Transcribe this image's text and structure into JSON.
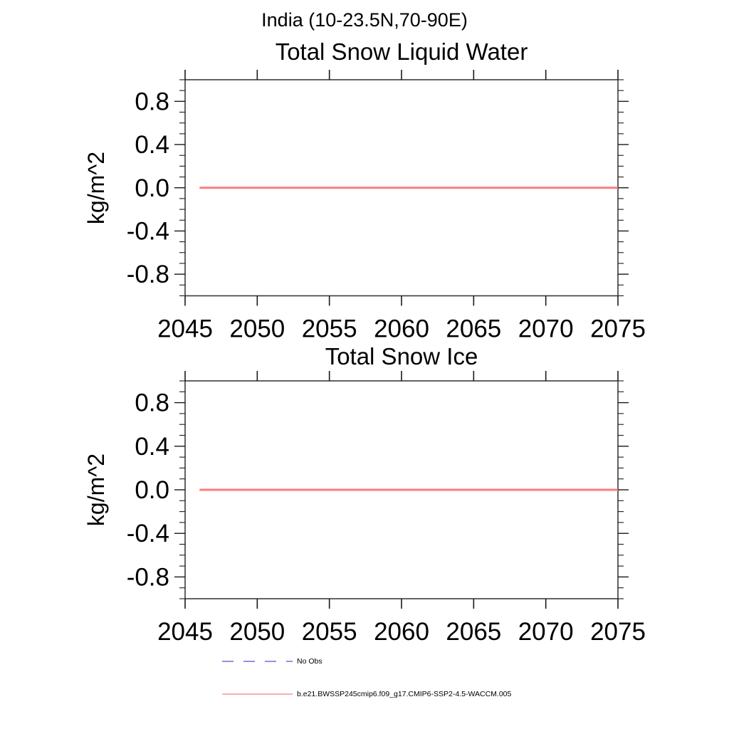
{
  "figure": {
    "suptitle": "India (10-23.5N,70-90E)",
    "background": "#ffffff",
    "axis_color": "#3c3c3c",
    "tick_color": "#1a1a1a",
    "text_color": "#000000"
  },
  "chart_data": [
    {
      "type": "line",
      "title": "Total Snow Liquid Water",
      "xlabel": "",
      "ylabel": "kg/m^2",
      "xlim": [
        2045,
        2075
      ],
      "ylim": [
        -1.0,
        1.0
      ],
      "xticks": [
        2045,
        2050,
        2055,
        2060,
        2065,
        2070,
        2075
      ],
      "xtick_labels": [
        "2045",
        "2050",
        "2055",
        "2060",
        "2065",
        "2070",
        "2075"
      ],
      "yticks": [
        0.8,
        0.4,
        0.0,
        -0.4,
        -0.8
      ],
      "ytick_labels": [
        "0.8",
        "0.4",
        "0.0",
        "-0.4",
        "-0.8"
      ],
      "y_minor_step": 0.1,
      "grid": false,
      "legend_position": "none",
      "series": [
        {
          "name": "b.e21.BWSSP245cmip6.f09_g17.CMIP6-SSP2-4.5-WACCM.005",
          "color": "#fb7e7e",
          "line_style": "solid",
          "line_width": 3,
          "x": [
            2046,
            2075
          ],
          "y": [
            0.0,
            0.0
          ]
        }
      ]
    },
    {
      "type": "line",
      "title": "Total Snow Ice",
      "xlabel": "",
      "ylabel": "kg/m^2",
      "xlim": [
        2045,
        2075
      ],
      "ylim": [
        -1.0,
        1.0
      ],
      "xticks": [
        2045,
        2050,
        2055,
        2060,
        2065,
        2070,
        2075
      ],
      "xtick_labels": [
        "2045",
        "2050",
        "2055",
        "2060",
        "2065",
        "2070",
        "2075"
      ],
      "yticks": [
        0.8,
        0.4,
        0.0,
        -0.4,
        -0.8
      ],
      "ytick_labels": [
        "0.8",
        "0.4",
        "0.0",
        "-0.4",
        "-0.8"
      ],
      "y_minor_step": 0.1,
      "grid": false,
      "legend_position": "none",
      "series": [
        {
          "name": "b.e21.BWSSP245cmip6.f09_g17.CMIP6-SSP2-4.5-WACCM.005",
          "color": "#fb7e7e",
          "line_style": "solid",
          "line_width": 3,
          "x": [
            2046,
            2075
          ],
          "y": [
            0.0,
            0.0
          ]
        }
      ]
    }
  ],
  "legend": {
    "position": "bottom-left",
    "items": [
      {
        "label": "No Obs",
        "color": "#6e6ed7",
        "line_style": "dashed"
      },
      {
        "label": "b.e21.BWSSP245cmip6.f09_g17.CMIP6-SSP2-4.5-WACCM.005",
        "color": "#fb7e7e",
        "line_style": "solid"
      }
    ]
  }
}
